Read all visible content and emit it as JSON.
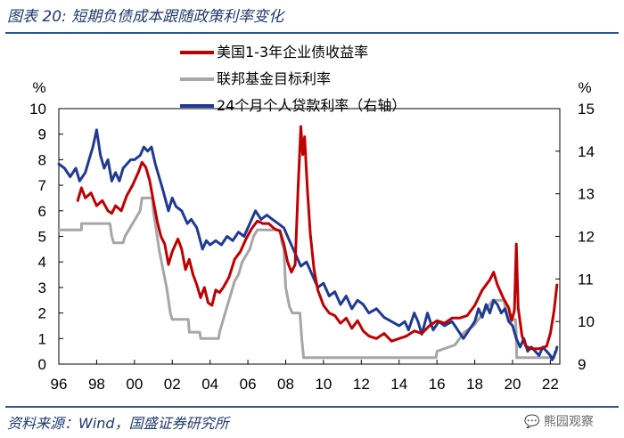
{
  "header": {
    "title": "图表 20: 短期负债成本跟随政策利率变化"
  },
  "footer": {
    "source": "资料来源：Wind，国盛证券研究所",
    "watermark": "熊园观察"
  },
  "chart_data": {
    "type": "line",
    "left_axis": {
      "unit_label": "%",
      "ylim": [
        0,
        10
      ],
      "ticks": [
        "0",
        "1",
        "2",
        "3",
        "4",
        "5",
        "6",
        "7",
        "8",
        "9",
        "10"
      ]
    },
    "right_axis": {
      "unit_label": "%",
      "ylim": [
        9,
        15
      ],
      "ticks": [
        "9",
        "10",
        "11",
        "12",
        "13",
        "14",
        "15"
      ]
    },
    "x_axis": {
      "range": [
        1996,
        2022.5
      ],
      "ticks": [
        {
          "year": 1996,
          "label": "96"
        },
        {
          "year": 1998,
          "label": "98"
        },
        {
          "year": 2000,
          "label": "00"
        },
        {
          "year": 2002,
          "label": "02"
        },
        {
          "year": 2004,
          "label": "04"
        },
        {
          "year": 2006,
          "label": "06"
        },
        {
          "year": 2008,
          "label": "08"
        },
        {
          "year": 2010,
          "label": "10"
        },
        {
          "year": 2012,
          "label": "12"
        },
        {
          "year": 2014,
          "label": "14"
        },
        {
          "year": 2016,
          "label": "16"
        },
        {
          "year": 2018,
          "label": "18"
        },
        {
          "year": 2020,
          "label": "20"
        },
        {
          "year": 2022,
          "label": "22"
        }
      ]
    },
    "legend_position": "top-center",
    "series": [
      {
        "name": "美国1-3年企业债收益率",
        "color": "#c00000",
        "axis": "left",
        "points": [
          [
            1997.0,
            6.4
          ],
          [
            1997.2,
            6.9
          ],
          [
            1997.4,
            6.5
          ],
          [
            1997.7,
            6.7
          ],
          [
            1998.0,
            6.2
          ],
          [
            1998.3,
            6.4
          ],
          [
            1998.6,
            6.0
          ],
          [
            1998.8,
            5.9
          ],
          [
            1999.0,
            6.2
          ],
          [
            1999.3,
            6.0
          ],
          [
            1999.6,
            6.6
          ],
          [
            1999.9,
            7.0
          ],
          [
            2000.2,
            7.5
          ],
          [
            2000.4,
            7.9
          ],
          [
            2000.6,
            7.7
          ],
          [
            2000.8,
            7.2
          ],
          [
            2001.0,
            6.4
          ],
          [
            2001.2,
            5.6
          ],
          [
            2001.4,
            5.0
          ],
          [
            2001.6,
            4.7
          ],
          [
            2001.8,
            3.9
          ],
          [
            2002.0,
            4.4
          ],
          [
            2002.3,
            4.9
          ],
          [
            2002.5,
            4.5
          ],
          [
            2002.7,
            3.7
          ],
          [
            2002.9,
            4.1
          ],
          [
            2003.1,
            3.5
          ],
          [
            2003.3,
            3.1
          ],
          [
            2003.5,
            2.6
          ],
          [
            2003.7,
            3.0
          ],
          [
            2003.9,
            2.4
          ],
          [
            2004.1,
            2.3
          ],
          [
            2004.3,
            2.9
          ],
          [
            2004.5,
            2.8
          ],
          [
            2004.7,
            3.0
          ],
          [
            2005.0,
            3.4
          ],
          [
            2005.3,
            4.1
          ],
          [
            2005.6,
            4.4
          ],
          [
            2005.9,
            4.9
          ],
          [
            2006.2,
            5.3
          ],
          [
            2006.5,
            5.6
          ],
          [
            2006.8,
            5.5
          ],
          [
            2007.1,
            5.5
          ],
          [
            2007.4,
            5.3
          ],
          [
            2007.7,
            5.2
          ],
          [
            2007.9,
            4.7
          ],
          [
            2008.1,
            4.0
          ],
          [
            2008.3,
            3.6
          ],
          [
            2008.5,
            3.9
          ],
          [
            2008.65,
            6.8
          ],
          [
            2008.8,
            9.3
          ],
          [
            2008.9,
            8.2
          ],
          [
            2009.0,
            8.9
          ],
          [
            2009.15,
            6.8
          ],
          [
            2009.3,
            5.1
          ],
          [
            2009.5,
            3.7
          ],
          [
            2009.7,
            2.9
          ],
          [
            2010.0,
            2.3
          ],
          [
            2010.3,
            2.0
          ],
          [
            2010.6,
            1.9
          ],
          [
            2010.9,
            1.6
          ],
          [
            2011.2,
            1.8
          ],
          [
            2011.5,
            1.4
          ],
          [
            2011.8,
            1.7
          ],
          [
            2012.1,
            1.3
          ],
          [
            2012.4,
            1.1
          ],
          [
            2012.8,
            1.0
          ],
          [
            2013.2,
            1.2
          ],
          [
            2013.6,
            0.9
          ],
          [
            2014.0,
            1.0
          ],
          [
            2014.4,
            1.1
          ],
          [
            2014.8,
            1.3
          ],
          [
            2015.2,
            1.2
          ],
          [
            2015.6,
            1.5
          ],
          [
            2016.0,
            1.7
          ],
          [
            2016.4,
            1.6
          ],
          [
            2016.8,
            1.8
          ],
          [
            2017.2,
            1.8
          ],
          [
            2017.6,
            1.9
          ],
          [
            2018.0,
            2.3
          ],
          [
            2018.4,
            2.9
          ],
          [
            2018.8,
            3.3
          ],
          [
            2019.0,
            3.6
          ],
          [
            2019.2,
            3.1
          ],
          [
            2019.5,
            2.6
          ],
          [
            2019.8,
            2.2
          ],
          [
            2019.95,
            1.7
          ],
          [
            2020.1,
            2.1
          ],
          [
            2020.2,
            4.7
          ],
          [
            2020.3,
            2.2
          ],
          [
            2020.5,
            1.1
          ],
          [
            2020.7,
            0.7
          ],
          [
            2021.0,
            0.6
          ],
          [
            2021.4,
            0.6
          ],
          [
            2021.8,
            0.7
          ],
          [
            2022.0,
            1.2
          ],
          [
            2022.2,
            2.1
          ],
          [
            2022.35,
            3.1
          ]
        ]
      },
      {
        "name": "联邦基金目标利率",
        "color": "#a6a6a6",
        "axis": "left",
        "points": [
          [
            1996.0,
            5.25
          ],
          [
            1997.2,
            5.25
          ],
          [
            1997.2,
            5.5
          ],
          [
            1998.7,
            5.5
          ],
          [
            1998.8,
            5.0
          ],
          [
            1998.9,
            4.75
          ],
          [
            1999.4,
            4.75
          ],
          [
            1999.5,
            5.0
          ],
          [
            1999.7,
            5.25
          ],
          [
            1999.9,
            5.5
          ],
          [
            2000.1,
            5.75
          ],
          [
            2000.3,
            6.0
          ],
          [
            2000.4,
            6.5
          ],
          [
            2000.95,
            6.5
          ],
          [
            2001.0,
            6.0
          ],
          [
            2001.1,
            5.5
          ],
          [
            2001.3,
            4.5
          ],
          [
            2001.5,
            3.75
          ],
          [
            2001.7,
            3.0
          ],
          [
            2001.9,
            2.0
          ],
          [
            2002.0,
            1.75
          ],
          [
            2002.85,
            1.75
          ],
          [
            2002.9,
            1.25
          ],
          [
            2003.45,
            1.25
          ],
          [
            2003.5,
            1.0
          ],
          [
            2004.45,
            1.0
          ],
          [
            2004.5,
            1.25
          ],
          [
            2004.7,
            1.75
          ],
          [
            2004.9,
            2.25
          ],
          [
            2005.1,
            2.75
          ],
          [
            2005.3,
            3.25
          ],
          [
            2005.5,
            3.5
          ],
          [
            2005.7,
            4.0
          ],
          [
            2005.9,
            4.25
          ],
          [
            2006.1,
            4.5
          ],
          [
            2006.3,
            5.0
          ],
          [
            2006.5,
            5.25
          ],
          [
            2007.7,
            5.25
          ],
          [
            2007.8,
            4.75
          ],
          [
            2007.9,
            4.5
          ],
          [
            2008.0,
            3.0
          ],
          [
            2008.2,
            2.25
          ],
          [
            2008.35,
            2.0
          ],
          [
            2008.75,
            2.0
          ],
          [
            2008.8,
            1.5
          ],
          [
            2008.85,
            1.0
          ],
          [
            2008.95,
            0.25
          ],
          [
            2015.95,
            0.25
          ],
          [
            2016.0,
            0.5
          ],
          [
            2016.95,
            0.75
          ],
          [
            2017.2,
            1.0
          ],
          [
            2017.45,
            1.25
          ],
          [
            2017.95,
            1.5
          ],
          [
            2018.2,
            1.75
          ],
          [
            2018.45,
            2.0
          ],
          [
            2018.7,
            2.25
          ],
          [
            2018.95,
            2.5
          ],
          [
            2019.55,
            2.5
          ],
          [
            2019.6,
            2.25
          ],
          [
            2019.7,
            2.0
          ],
          [
            2019.8,
            1.75
          ],
          [
            2020.15,
            1.75
          ],
          [
            2020.2,
            1.25
          ],
          [
            2020.22,
            0.25
          ],
          [
            2022.2,
            0.25
          ],
          [
            2022.25,
            0.5
          ]
        ]
      },
      {
        "name": "24个月个人贷款利率（右轴）",
        "color": "#1f3a93",
        "axis": "right",
        "points": [
          [
            1996.0,
            13.7
          ],
          [
            1996.3,
            13.6
          ],
          [
            1996.6,
            13.4
          ],
          [
            1996.9,
            13.6
          ],
          [
            1997.1,
            13.3
          ],
          [
            1997.4,
            13.5
          ],
          [
            1997.6,
            13.8
          ],
          [
            1997.8,
            14.1
          ],
          [
            1998.0,
            14.5
          ],
          [
            1998.2,
            13.9
          ],
          [
            1998.4,
            13.6
          ],
          [
            1998.6,
            13.8
          ],
          [
            1998.8,
            13.3
          ],
          [
            1999.0,
            13.5
          ],
          [
            1999.2,
            13.3
          ],
          [
            1999.4,
            13.6
          ],
          [
            1999.6,
            13.7
          ],
          [
            1999.8,
            13.8
          ],
          [
            2000.0,
            13.8
          ],
          [
            2000.3,
            13.9
          ],
          [
            2000.5,
            14.1
          ],
          [
            2000.7,
            14.0
          ],
          [
            2000.9,
            14.1
          ],
          [
            2001.1,
            13.7
          ],
          [
            2001.3,
            13.4
          ],
          [
            2001.5,
            13.1
          ],
          [
            2001.8,
            12.6
          ],
          [
            2002.0,
            12.9
          ],
          [
            2002.2,
            12.7
          ],
          [
            2002.5,
            12.6
          ],
          [
            2002.8,
            12.3
          ],
          [
            2003.0,
            12.4
          ],
          [
            2003.3,
            12.2
          ],
          [
            2003.6,
            11.7
          ],
          [
            2003.8,
            11.9
          ],
          [
            2004.0,
            11.8
          ],
          [
            2004.3,
            11.9
          ],
          [
            2004.6,
            11.8
          ],
          [
            2004.9,
            12.0
          ],
          [
            2005.2,
            11.9
          ],
          [
            2005.5,
            12.1
          ],
          [
            2005.8,
            12.0
          ],
          [
            2006.1,
            12.3
          ],
          [
            2006.4,
            12.6
          ],
          [
            2006.7,
            12.4
          ],
          [
            2007.0,
            12.5
          ],
          [
            2007.3,
            12.4
          ],
          [
            2007.6,
            12.3
          ],
          [
            2007.9,
            12.2
          ],
          [
            2008.2,
            11.9
          ],
          [
            2008.5,
            11.6
          ],
          [
            2008.8,
            11.3
          ],
          [
            2009.1,
            11.4
          ],
          [
            2009.4,
            11.1
          ],
          [
            2009.7,
            10.8
          ],
          [
            2010.0,
            10.9
          ],
          [
            2010.3,
            10.6
          ],
          [
            2010.6,
            10.7
          ],
          [
            2010.9,
            10.4
          ],
          [
            2011.2,
            10.6
          ],
          [
            2011.5,
            10.3
          ],
          [
            2011.8,
            10.5
          ],
          [
            2012.1,
            10.4
          ],
          [
            2012.4,
            10.2
          ],
          [
            2012.8,
            10.3
          ],
          [
            2013.2,
            10.1
          ],
          [
            2013.6,
            10.0
          ],
          [
            2014.0,
            9.9
          ],
          [
            2014.3,
            10.0
          ],
          [
            2014.5,
            9.8
          ],
          [
            2014.8,
            10.2
          ],
          [
            2015.0,
            10.0
          ],
          [
            2015.2,
            9.7
          ],
          [
            2015.5,
            10.2
          ],
          [
            2015.8,
            9.8
          ],
          [
            2016.1,
            10.0
          ],
          [
            2016.4,
            9.9
          ],
          [
            2016.8,
            10.0
          ],
          [
            2017.1,
            9.8
          ],
          [
            2017.4,
            9.6
          ],
          [
            2017.7,
            9.8
          ],
          [
            2018.0,
            10.0
          ],
          [
            2018.2,
            10.3
          ],
          [
            2018.4,
            10.1
          ],
          [
            2018.6,
            10.4
          ],
          [
            2018.8,
            10.2
          ],
          [
            2019.0,
            10.5
          ],
          [
            2019.2,
            10.4
          ],
          [
            2019.4,
            10.2
          ],
          [
            2019.6,
            10.3
          ],
          [
            2019.8,
            10.0
          ],
          [
            2020.0,
            9.9
          ],
          [
            2020.2,
            9.6
          ],
          [
            2020.4,
            9.4
          ],
          [
            2020.6,
            9.6
          ],
          [
            2020.8,
            9.3
          ],
          [
            2021.0,
            9.4
          ],
          [
            2021.2,
            9.3
          ],
          [
            2021.4,
            9.2
          ],
          [
            2021.6,
            9.4
          ],
          [
            2021.8,
            9.3
          ],
          [
            2022.0,
            9.2
          ],
          [
            2022.1,
            9.1
          ],
          [
            2022.2,
            9.2
          ],
          [
            2022.3,
            9.3
          ],
          [
            2022.35,
            9.4
          ]
        ]
      }
    ]
  }
}
